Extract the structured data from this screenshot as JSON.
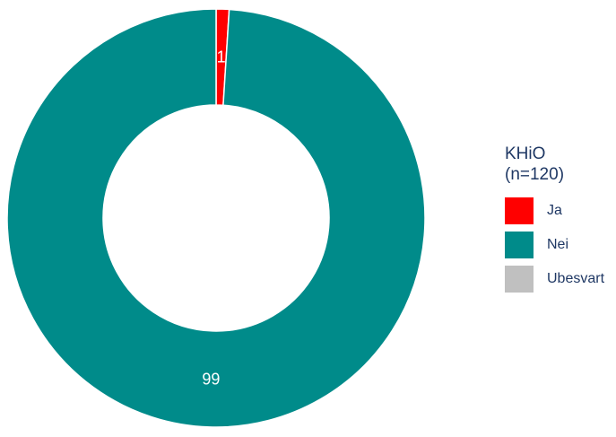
{
  "chart_data": {
    "type": "pie",
    "variant": "donut",
    "title": "",
    "legend_title_line1": "KHiO",
    "legend_title_line2": "(n=120)",
    "legend_position": "right",
    "categories": [
      "Ja",
      "Nei",
      "Ubesvart"
    ],
    "values": [
      1,
      99,
      0
    ],
    "data_labels": [
      "1",
      "99",
      ""
    ],
    "colors": [
      "#ff0000",
      "#008b8a",
      "#c0c0c0"
    ]
  }
}
